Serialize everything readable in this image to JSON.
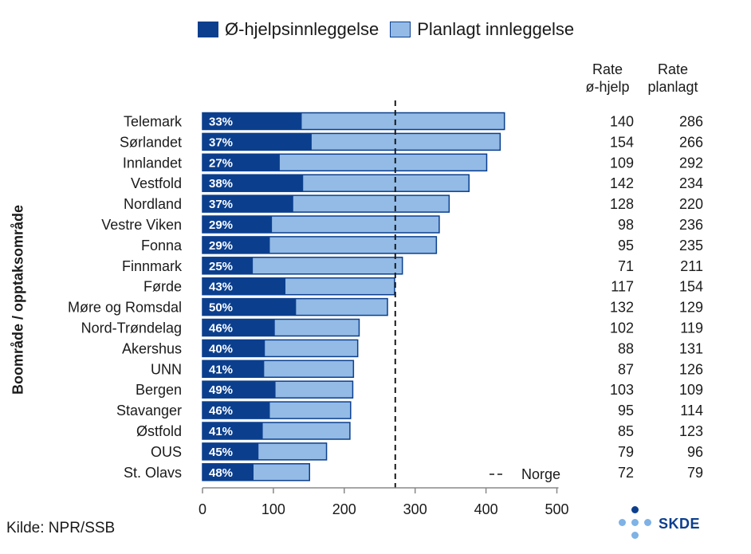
{
  "legend": {
    "emergency": "Ø-hjelpsinnleggelse",
    "planned": "Planlagt innleggelse"
  },
  "y_axis_label": "Boområde / opptaksområde",
  "table_headers": {
    "col1_line1": "Rate",
    "col1_line2": "ø-hjelp",
    "col2_line1": "Rate",
    "col2_line2": "planlagt"
  },
  "reference_label": "Norge",
  "source": "Kilde: NPR/SSB",
  "logo_text": "SKDE",
  "colors": {
    "emergency": "#0b3f8e",
    "planned": "#93bbe6",
    "logo_dots": "#7fb2e5",
    "logo_dot_dark": "#0b3f8e"
  },
  "chart_data": {
    "type": "bar",
    "orientation": "horizontal",
    "stacked": true,
    "categories": [
      "Telemark",
      "Sørlandet",
      "Innlandet",
      "Vestfold",
      "Nordland",
      "Vestre Viken",
      "Fonna",
      "Finnmark",
      "Førde",
      "Møre og Romsdal",
      "Nord-Trøndelag",
      "Akershus",
      "UNN",
      "Bergen",
      "Stavanger",
      "Østfold",
      "OUS",
      "St. Olavs"
    ],
    "series": [
      {
        "name": "Ø-hjelpsinnleggelse",
        "values": [
          140,
          154,
          109,
          142,
          128,
          98,
          95,
          71,
          117,
          132,
          102,
          88,
          87,
          103,
          95,
          85,
          79,
          72
        ]
      },
      {
        "name": "Planlagt innleggelse",
        "values": [
          286,
          266,
          292,
          234,
          220,
          236,
          235,
          211,
          154,
          129,
          119,
          131,
          126,
          109,
          114,
          123,
          96,
          79
        ]
      }
    ],
    "bar_labels": [
      "33%",
      "37%",
      "27%",
      "38%",
      "37%",
      "29%",
      "29%",
      "25%",
      "43%",
      "50%",
      "46%",
      "40%",
      "41%",
      "49%",
      "46%",
      "41%",
      "45%",
      "48%"
    ],
    "reference_line": {
      "name": "Norge",
      "value": 272
    },
    "xlim": [
      0,
      500
    ],
    "xticks": [
      "0",
      "100",
      "200",
      "300",
      "400",
      "500"
    ],
    "ylabel": "Boområde / opptaksområde",
    "legend_position": "top"
  }
}
